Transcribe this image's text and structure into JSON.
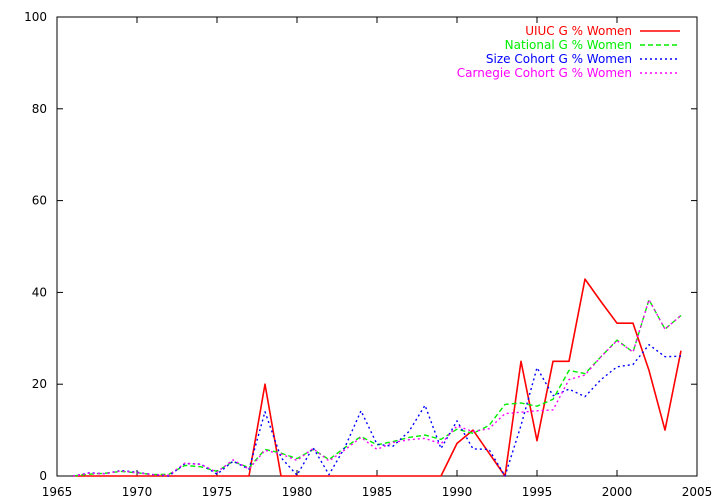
{
  "chart_data": {
    "type": "line",
    "title": "",
    "xlabel": "",
    "ylabel": "",
    "xlim": [
      1965,
      2005
    ],
    "ylim": [
      0,
      100
    ],
    "xticks": [
      1965,
      1970,
      1975,
      1980,
      1985,
      1990,
      1995,
      2000,
      2005
    ],
    "yticks": [
      0,
      20,
      40,
      60,
      80,
      100
    ],
    "grid": false,
    "legend_position": "top-right",
    "series": [
      {
        "name": "UIUC G % Women",
        "color": "#ff0000",
        "dash": "solid",
        "x": [
          1966,
          1967,
          1968,
          1969,
          1970,
          1971,
          1972,
          1973,
          1974,
          1975,
          1976,
          1977,
          1978,
          1979,
          1980,
          1981,
          1982,
          1983,
          1984,
          1985,
          1986,
          1987,
          1988,
          1989,
          1990,
          1991,
          1992,
          1993,
          1994,
          1995,
          1996,
          1997,
          1998,
          1999,
          2000,
          2001,
          2002,
          2003,
          2004
        ],
        "y": [
          0,
          0,
          0,
          0,
          0,
          0,
          0,
          0,
          0,
          0,
          0,
          0,
          20,
          0,
          0,
          0,
          0,
          0,
          0,
          0,
          0,
          0,
          0,
          0,
          7.1,
          10,
          5,
          0,
          25,
          7.7,
          25,
          25,
          42.9,
          38,
          33.3,
          33.3,
          23,
          10,
          27.3
        ]
      },
      {
        "name": "National G % Women",
        "color": "#00ee00",
        "dash": "dashed",
        "x": [
          1966,
          1967,
          1968,
          1969,
          1970,
          1971,
          1972,
          1973,
          1974,
          1975,
          1976,
          1977,
          1978,
          1979,
          1980,
          1981,
          1982,
          1983,
          1984,
          1985,
          1986,
          1987,
          1988,
          1989,
          1990,
          1991,
          1992,
          1993,
          1994,
          1995,
          1996,
          1997,
          1998,
          1999,
          2000,
          2001,
          2002,
          2003,
          2004
        ],
        "y": [
          0,
          0.4,
          0.6,
          1,
          0.7,
          0.3,
          0.4,
          2.3,
          2,
          1,
          3.2,
          1.8,
          5.8,
          5,
          3.8,
          5.8,
          3.6,
          6.2,
          8.6,
          6.8,
          7.5,
          8.4,
          8.9,
          8,
          10.2,
          9.3,
          11,
          15.6,
          15.9,
          15.2,
          16.7,
          23,
          22.3,
          26,
          29.6,
          27,
          38.4,
          32,
          35
        ]
      },
      {
        "name": "Size Cohort G % Women",
        "color": "#0000ff",
        "dash": "dotted",
        "x": [
          1966,
          1967,
          1968,
          1969,
          1970,
          1971,
          1972,
          1973,
          1974,
          1975,
          1976,
          1977,
          1978,
          1979,
          1980,
          1981,
          1982,
          1983,
          1984,
          1985,
          1986,
          1987,
          1988,
          1989,
          1990,
          1991,
          1992,
          1993,
          1994,
          1995,
          1996,
          1997,
          1998,
          1999,
          2000,
          2001,
          2002,
          2003,
          2004
        ],
        "y": [
          0,
          0.7,
          0.5,
          1.2,
          0.8,
          0.3,
          0,
          2.7,
          2.6,
          0.4,
          3.2,
          1.5,
          14,
          4,
          0.2,
          6.2,
          0.3,
          6.3,
          14.2,
          6.9,
          6.5,
          9.7,
          15.4,
          6,
          12,
          5.9,
          5.8,
          0,
          11,
          23.6,
          17.5,
          18.9,
          17.3,
          21,
          23.8,
          24.3,
          28.6,
          26,
          26.1
        ]
      },
      {
        "name": "Carnegie Cohort G % Women",
        "color": "#ff00ff",
        "dash": "dotted",
        "x": [
          1966,
          1967,
          1968,
          1969,
          1970,
          1971,
          1972,
          1973,
          1974,
          1975,
          1976,
          1977,
          1978,
          1979,
          1980,
          1981,
          1982,
          1983,
          1984,
          1985,
          1986,
          1987,
          1988,
          1989,
          1990,
          1991,
          1992,
          1993,
          1994,
          1995,
          1996,
          1997,
          1998,
          1999,
          2000,
          2001,
          2002,
          2003,
          2004
        ],
        "y": [
          0,
          0.6,
          0.5,
          1.1,
          0.7,
          0.3,
          0.2,
          2.8,
          2.5,
          0.8,
          3.5,
          1.5,
          5.6,
          4.8,
          3.4,
          6,
          3.3,
          5.7,
          8.4,
          5.8,
          7.3,
          7.9,
          8.2,
          7,
          10.9,
          9.7,
          10.3,
          13.6,
          13.9,
          14.2,
          14.4,
          21,
          22,
          26,
          29.5,
          27,
          38.4,
          32,
          35
        ]
      }
    ]
  }
}
